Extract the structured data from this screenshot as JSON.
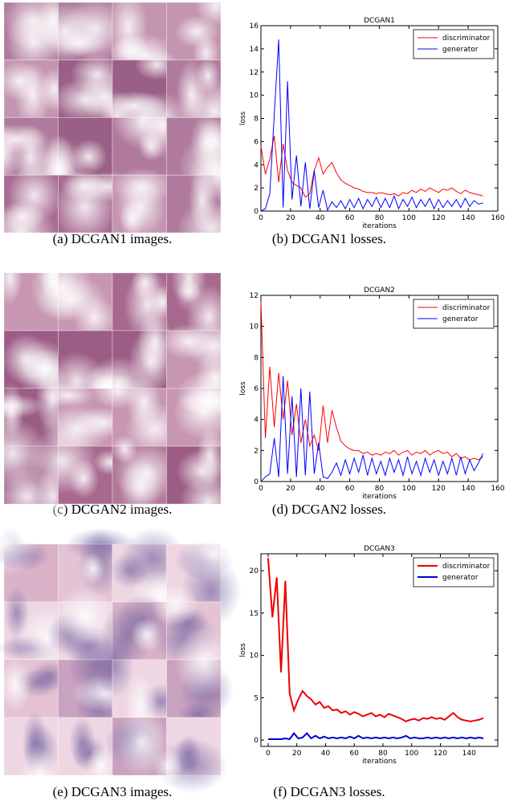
{
  "chart_data": [
    {
      "type": "line",
      "title": "DCGAN1",
      "xlabel": "iterations",
      "ylabel": "loss",
      "xlim": [
        0,
        160
      ],
      "xticks": [
        0,
        20,
        40,
        60,
        80,
        100,
        120,
        140,
        160
      ],
      "ylim": [
        0,
        16
      ],
      "yticks": [
        0,
        2,
        4,
        6,
        8,
        10,
        12,
        14,
        16
      ],
      "legend": "upper right",
      "line_width": 1,
      "x": [
        0,
        3,
        6,
        9,
        12,
        15,
        18,
        21,
        24,
        27,
        30,
        33,
        36,
        39,
        42,
        45,
        48,
        51,
        54,
        57,
        60,
        63,
        66,
        69,
        72,
        75,
        78,
        81,
        84,
        87,
        90,
        93,
        96,
        99,
        102,
        105,
        108,
        111,
        114,
        117,
        120,
        123,
        126,
        129,
        132,
        135,
        138,
        141,
        144,
        147,
        150
      ],
      "series": [
        {
          "name": "discriminator",
          "color": "#ff0000",
          "values": [
            5.6,
            3.2,
            4.5,
            6.5,
            2.5,
            5.8,
            3.5,
            2.5,
            2.2,
            2.0,
            1.2,
            1.5,
            3.5,
            4.6,
            3.2,
            3.8,
            4.2,
            3.3,
            2.7,
            2.4,
            2.2,
            2.0,
            1.9,
            1.7,
            1.6,
            1.6,
            1.5,
            1.6,
            1.5,
            1.4,
            1.5,
            1.3,
            1.6,
            1.5,
            1.8,
            1.6,
            1.9,
            1.7,
            2.0,
            1.8,
            1.6,
            1.9,
            1.8,
            2.0,
            1.7,
            1.5,
            1.8,
            1.6,
            1.5,
            1.4,
            1.3
          ]
        },
        {
          "name": "generator",
          "color": "#0000ff",
          "values": [
            0,
            0.2,
            1.5,
            8.3,
            14.8,
            0.3,
            11.2,
            1.0,
            4.8,
            0.4,
            4.2,
            0.2,
            3.5,
            0.3,
            1.8,
            0.1,
            0.8,
            0.3,
            0.9,
            0.2,
            1.0,
            0.3,
            1.1,
            0.2,
            1.0,
            0.4,
            1.2,
            0.3,
            1.1,
            0.3,
            1.3,
            0.2,
            1.0,
            0.4,
            1.2,
            0.3,
            1.0,
            0.4,
            1.1,
            0.2,
            1.0,
            0.3,
            0.9,
            0.4,
            1.0,
            0.3,
            1.1,
            0.4,
            0.9,
            0.6,
            0.7
          ]
        }
      ]
    },
    {
      "type": "line",
      "title": "DCGAN2",
      "xlabel": "iterations",
      "ylabel": "loss",
      "xlim": [
        0,
        160
      ],
      "xticks": [
        0,
        20,
        40,
        60,
        80,
        100,
        120,
        140,
        160
      ],
      "ylim": [
        0,
        12
      ],
      "yticks": [
        0,
        2,
        4,
        6,
        8,
        10,
        12
      ],
      "legend": "upper right",
      "line_width": 1,
      "x": [
        0,
        3,
        6,
        9,
        12,
        15,
        18,
        21,
        24,
        27,
        30,
        33,
        36,
        39,
        42,
        45,
        48,
        51,
        54,
        57,
        60,
        63,
        66,
        69,
        72,
        75,
        78,
        81,
        84,
        87,
        90,
        93,
        96,
        99,
        102,
        105,
        108,
        111,
        114,
        117,
        120,
        123,
        126,
        129,
        132,
        135,
        138,
        141,
        144,
        147,
        150
      ],
      "series": [
        {
          "name": "discriminator",
          "color": "#ff0000",
          "values": [
            11.6,
            2.8,
            7.4,
            3.5,
            7.0,
            4.0,
            6.5,
            3.0,
            5.0,
            2.5,
            4.0,
            2.3,
            3.0,
            2.0,
            4.9,
            2.5,
            4.6,
            3.5,
            2.6,
            2.3,
            2.1,
            2.0,
            2.0,
            1.8,
            1.9,
            1.7,
            1.8,
            1.7,
            1.9,
            1.8,
            2.0,
            1.7,
            1.9,
            2.0,
            1.7,
            1.9,
            1.8,
            2.0,
            1.7,
            1.9,
            2.0,
            1.8,
            1.9,
            1.6,
            1.8,
            1.5,
            1.6,
            1.4,
            1.5,
            1.4,
            1.6
          ]
        },
        {
          "name": "generator",
          "color": "#0000ff",
          "values": [
            0,
            0.3,
            0.5,
            2.8,
            0.3,
            6.8,
            0.5,
            5.5,
            0.3,
            6.0,
            0.4,
            5.8,
            0.5,
            2.5,
            0.3,
            0.2,
            0.6,
            1.2,
            0.4,
            1.4,
            0.5,
            1.5,
            0.6,
            1.7,
            0.4,
            1.5,
            0.5,
            1.3,
            0.4,
            1.5,
            0.6,
            1.4,
            0.4,
            1.6,
            0.5,
            1.3,
            0.4,
            1.5,
            0.6,
            1.4,
            0.4,
            1.3,
            0.5,
            1.5,
            0.4,
            1.6,
            0.5,
            1.4,
            0.7,
            1.2,
            1.8
          ]
        }
      ]
    },
    {
      "type": "line",
      "title": "DCGAN3",
      "xlabel": "iterations",
      "ylabel": "loss",
      "xlim": [
        -5,
        160
      ],
      "xticks": [
        0,
        20,
        40,
        60,
        80,
        100,
        120,
        140
      ],
      "ylim": [
        -0.75,
        22
      ],
      "yticks": [
        0,
        5,
        10,
        15,
        20
      ],
      "legend": "upper right",
      "line_width": 2,
      "x": [
        0,
        3,
        6,
        9,
        12,
        15,
        18,
        21,
        24,
        27,
        30,
        33,
        36,
        39,
        42,
        45,
        48,
        51,
        54,
        57,
        60,
        63,
        66,
        69,
        72,
        75,
        78,
        81,
        84,
        87,
        90,
        93,
        96,
        99,
        102,
        105,
        108,
        111,
        114,
        117,
        120,
        123,
        126,
        129,
        132,
        135,
        138,
        141,
        144,
        147,
        150
      ],
      "series": [
        {
          "name": "discriminator",
          "color": "#ee0000",
          "values": [
            21.5,
            14.5,
            19.2,
            8.0,
            18.8,
            5.5,
            3.5,
            4.8,
            5.8,
            5.2,
            4.8,
            4.2,
            4.5,
            3.8,
            4.0,
            3.5,
            3.6,
            3.2,
            3.4,
            3.0,
            3.3,
            3.1,
            2.8,
            3.0,
            3.2,
            2.8,
            3.0,
            2.7,
            3.1,
            2.9,
            2.7,
            2.5,
            2.2,
            2.4,
            2.5,
            2.3,
            2.6,
            2.5,
            2.7,
            2.5,
            2.6,
            2.4,
            2.8,
            3.2,
            2.7,
            2.4,
            2.3,
            2.2,
            2.3,
            2.4,
            2.6
          ]
        },
        {
          "name": "generator",
          "color": "#0000cc",
          "values": [
            0.1,
            0.1,
            0.1,
            0.1,
            0.2,
            0.1,
            0.8,
            0.2,
            0.3,
            0.8,
            0.2,
            0.5,
            0.2,
            0.4,
            0.2,
            0.3,
            0.2,
            0.3,
            0.2,
            0.4,
            0.2,
            0.5,
            0.2,
            0.3,
            0.2,
            0.3,
            0.2,
            0.3,
            0.2,
            0.3,
            0.2,
            0.3,
            0.5,
            0.2,
            0.3,
            0.2,
            0.2,
            0.3,
            0.2,
            0.3,
            0.2,
            0.3,
            0.2,
            0.3,
            0.2,
            0.3,
            0.2,
            0.3,
            0.2,
            0.3,
            0.2
          ]
        }
      ]
    }
  ],
  "captions": [
    "(a) DCGAN1 images.",
    "(b) DCGAN1 losses.",
    "(c) DCGAN2 images.",
    "(d) DCGAN2 losses.",
    "(e) DCGAN3 images.",
    "(f) DCGAN3 losses."
  ]
}
